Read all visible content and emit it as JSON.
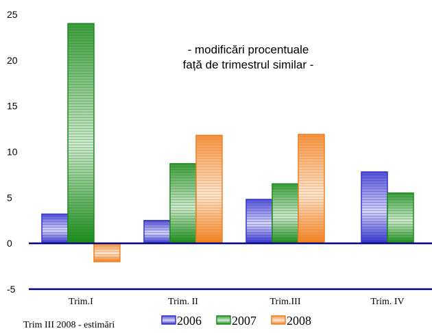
{
  "chart_data": {
    "type": "bar",
    "title": "",
    "xlabel": "",
    "ylabel": "",
    "annotation": [
      "- modificări procentuale",
      "față de trimestrul similar -"
    ],
    "footnote": "Trim III 2008 - estimări",
    "categories": [
      "Trim.I",
      "Trim. II",
      "Trim.III",
      "Trim. IV"
    ],
    "yticks": [
      25,
      20,
      15,
      10,
      5,
      0,
      -5
    ],
    "ylim": [
      -5,
      25
    ],
    "grid": false,
    "legend_position": "bottom",
    "series": [
      {
        "name": "2006",
        "color": "#3333cc",
        "values": [
          3.2,
          2.5,
          4.8,
          7.8
        ]
      },
      {
        "name": "2007",
        "color": "#1a8a1a",
        "values": [
          24.0,
          8.7,
          6.5,
          5.5
        ]
      },
      {
        "name": "2008",
        "color": "#f08020",
        "values": [
          -2.0,
          11.8,
          11.9,
          null
        ]
      }
    ]
  }
}
